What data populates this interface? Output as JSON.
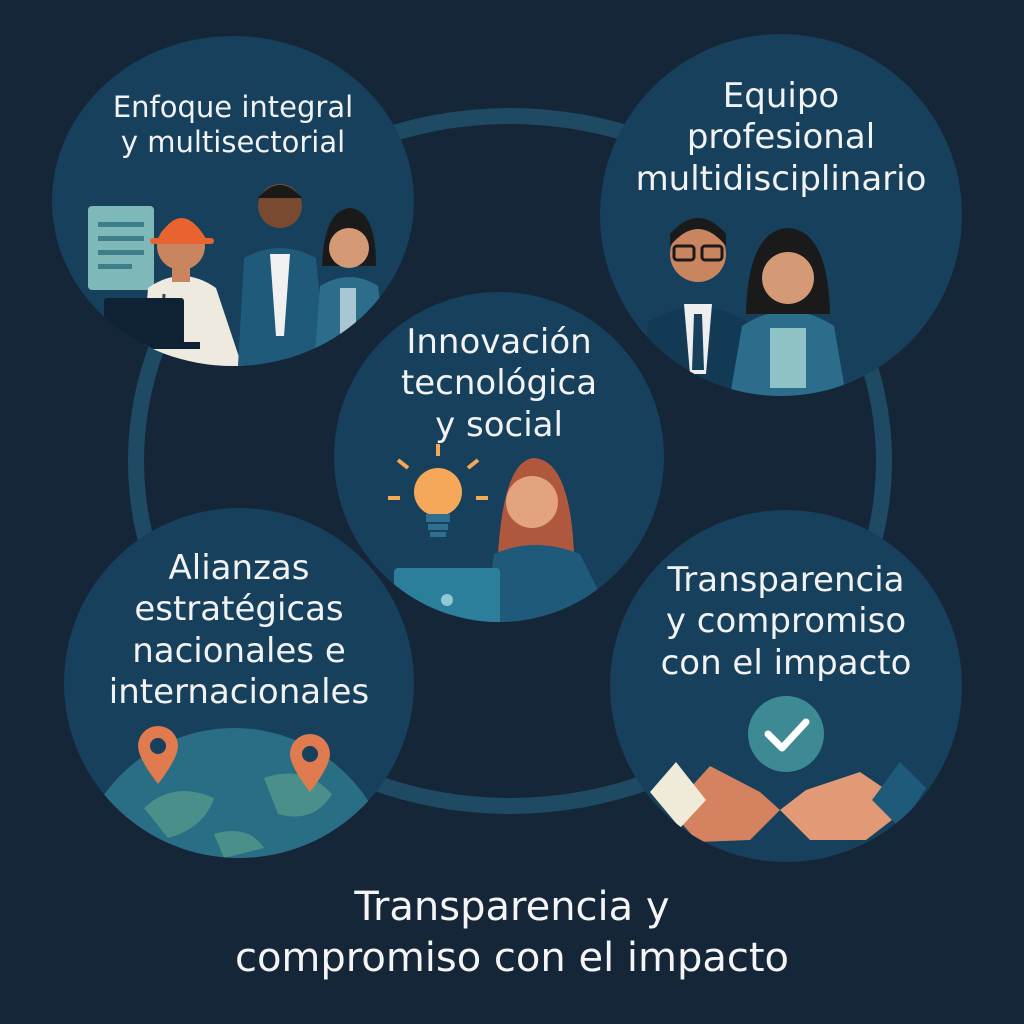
{
  "diagram": {
    "nodes": [
      {
        "id": "top-left",
        "lines": [
          "Enfoque integral",
          "y multisectorial"
        ]
      },
      {
        "id": "top-right",
        "lines": [
          "Equipo",
          "profesional",
          "multidisciplinario"
        ]
      },
      {
        "id": "center",
        "lines": [
          "Innovación",
          "tecnológica",
          "y social"
        ]
      },
      {
        "id": "bottom-left",
        "lines": [
          "Alianzas",
          "estratégicas",
          "nacionales e",
          "internacionales"
        ]
      },
      {
        "id": "bottom-right",
        "lines": [
          "Transparencia",
          "y compromiso",
          "con el impacto"
        ]
      }
    ],
    "footer": {
      "lines": [
        "Transparencia y",
        "compromiso con el impacto"
      ]
    }
  },
  "icons": [
    "document-icon",
    "hard-hat-icon",
    "stethoscope-icon",
    "laptop-icon",
    "lightbulb-icon",
    "globe-icon",
    "map-pin-icon",
    "check-icon",
    "handshake-icon"
  ],
  "colors": {
    "background": "#152638",
    "circle": "#16405b",
    "ring": "#1e4a63",
    "accent_orange": "#e07a4f",
    "text": "#f2f2f2"
  }
}
